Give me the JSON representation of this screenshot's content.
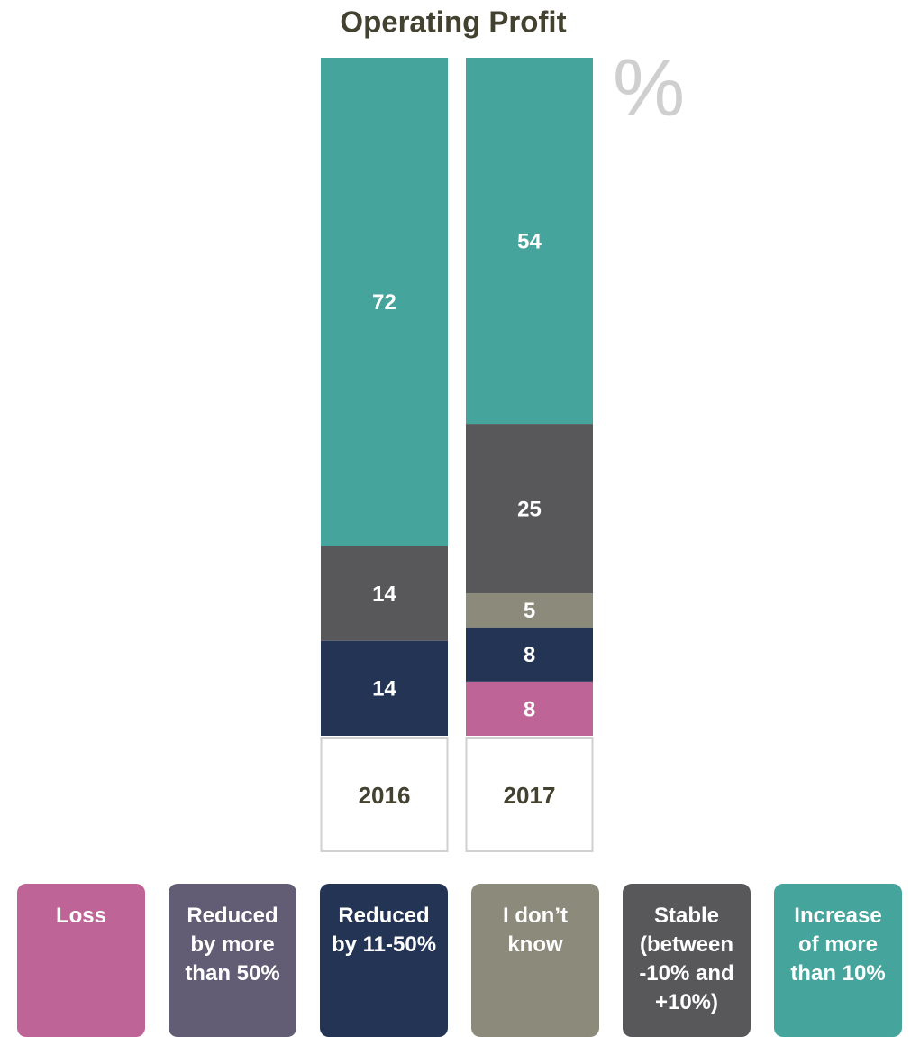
{
  "chart_data": {
    "type": "stacked_bar",
    "title": "Operating Profit",
    "unit": "%",
    "categories": [
      "2016",
      "2017"
    ],
    "ylim": [
      0,
      100
    ],
    "series": [
      {
        "name": "Loss",
        "color": "#be6496",
        "values": [
          null,
          8
        ]
      },
      {
        "name": "Reduced by more than 50%",
        "color": "#625d74",
        "values": [
          null,
          null
        ]
      },
      {
        "name": "Reduced by 11-50%",
        "color": "#243455",
        "values": [
          14,
          8
        ]
      },
      {
        "name": "I don’t know",
        "color": "#8c8b7b",
        "values": [
          null,
          5
        ]
      },
      {
        "name": "Stable (between -10% and +10%)",
        "color": "#58585a",
        "values": [
          14,
          25
        ]
      },
      {
        "name": "Increase of more than 10%",
        "color": "#45a49c",
        "values": [
          72,
          54
        ]
      }
    ]
  }
}
